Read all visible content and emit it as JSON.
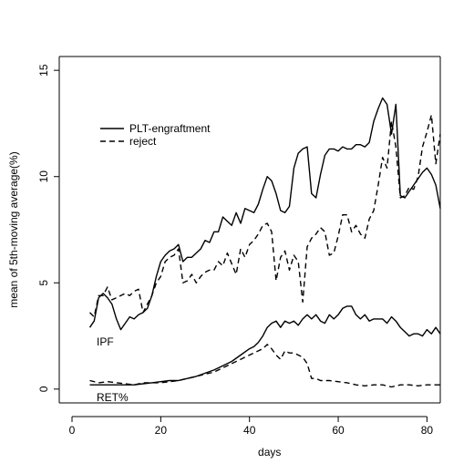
{
  "chart_data": {
    "type": "line",
    "title": "",
    "xlabel": "days",
    "ylabel": "mean of 5th-moving average(%)",
    "xlim": [
      0,
      83
    ],
    "ylim": [
      0,
      15
    ],
    "x_ticks": [
      "0",
      "20",
      "40",
      "60",
      "80"
    ],
    "y_ticks": [
      "0",
      "5",
      "10",
      "15"
    ],
    "grid": false,
    "legend": {
      "position": "top-left",
      "entries": [
        {
          "label": "PLT-engraftment",
          "style": "solid"
        },
        {
          "label": "reject",
          "style": "dashed"
        }
      ]
    },
    "annotations": [
      "IPF",
      "RET%"
    ],
    "series": [
      {
        "name": "PLT-engraftment",
        "group": "IPF",
        "style": "solid",
        "points": [
          [
            4,
            2.9
          ],
          [
            5,
            3.2
          ],
          [
            6,
            4.3
          ],
          [
            7,
            4.5
          ],
          [
            8,
            4.3
          ],
          [
            9,
            4.0
          ],
          [
            10,
            3.3
          ],
          [
            11,
            2.8
          ],
          [
            12,
            3.1
          ],
          [
            13,
            3.4
          ],
          [
            14,
            3.3
          ],
          [
            15,
            3.5
          ],
          [
            16,
            3.6
          ],
          [
            17,
            3.8
          ],
          [
            18,
            4.4
          ],
          [
            19,
            5.3
          ],
          [
            20,
            6.0
          ],
          [
            21,
            6.3
          ],
          [
            22,
            6.5
          ],
          [
            23,
            6.6
          ],
          [
            24,
            6.8
          ],
          [
            25,
            6.0
          ],
          [
            26,
            6.2
          ],
          [
            27,
            6.2
          ],
          [
            28,
            6.4
          ],
          [
            29,
            6.6
          ],
          [
            30,
            7.0
          ],
          [
            31,
            6.9
          ],
          [
            32,
            7.4
          ],
          [
            33,
            7.4
          ],
          [
            34,
            8.1
          ],
          [
            35,
            7.9
          ],
          [
            36,
            7.7
          ],
          [
            37,
            8.3
          ],
          [
            38,
            7.8
          ],
          [
            39,
            8.5
          ],
          [
            40,
            8.4
          ],
          [
            41,
            8.3
          ],
          [
            42,
            8.7
          ],
          [
            43,
            9.4
          ],
          [
            44,
            10.0
          ],
          [
            45,
            9.8
          ],
          [
            46,
            9.2
          ],
          [
            47,
            8.4
          ],
          [
            48,
            8.3
          ],
          [
            49,
            8.6
          ],
          [
            50,
            10.4
          ],
          [
            51,
            11.1
          ],
          [
            52,
            11.3
          ],
          [
            53,
            11.4
          ],
          [
            54,
            9.2
          ],
          [
            55,
            9.0
          ],
          [
            56,
            10.1
          ],
          [
            57,
            11.0
          ],
          [
            58,
            11.3
          ],
          [
            59,
            11.3
          ],
          [
            60,
            11.2
          ],
          [
            61,
            11.4
          ],
          [
            62,
            11.3
          ],
          [
            63,
            11.3
          ],
          [
            64,
            11.5
          ],
          [
            65,
            11.5
          ],
          [
            66,
            11.4
          ],
          [
            67,
            11.6
          ],
          [
            68,
            12.6
          ],
          [
            69,
            13.2
          ],
          [
            70,
            13.7
          ],
          [
            71,
            13.4
          ],
          [
            72,
            12.0
          ],
          [
            73,
            13.4
          ],
          [
            74,
            9.1
          ],
          [
            75,
            9.0
          ],
          [
            76,
            9.3
          ],
          [
            77,
            9.6
          ],
          [
            78,
            9.9
          ],
          [
            79,
            10.2
          ],
          [
            80,
            10.4
          ],
          [
            81,
            10.1
          ],
          [
            82,
            9.6
          ],
          [
            83,
            8.5
          ]
        ]
      },
      {
        "name": "reject",
        "group": "IPF",
        "style": "dashed",
        "points": [
          [
            4,
            3.6
          ],
          [
            5,
            3.4
          ],
          [
            6,
            4.4
          ],
          [
            7,
            4.4
          ],
          [
            8,
            4.8
          ],
          [
            9,
            4.2
          ],
          [
            10,
            4.3
          ],
          [
            11,
            4.4
          ],
          [
            12,
            4.5
          ],
          [
            13,
            4.4
          ],
          [
            14,
            4.6
          ],
          [
            15,
            4.7
          ],
          [
            16,
            3.6
          ],
          [
            17,
            4.0
          ],
          [
            18,
            4.4
          ],
          [
            19,
            5.0
          ],
          [
            20,
            5.3
          ],
          [
            21,
            6.0
          ],
          [
            22,
            6.2
          ],
          [
            23,
            6.3
          ],
          [
            24,
            6.6
          ],
          [
            25,
            5.0
          ],
          [
            26,
            5.1
          ],
          [
            27,
            5.4
          ],
          [
            28,
            5.0
          ],
          [
            29,
            5.3
          ],
          [
            30,
            5.5
          ],
          [
            31,
            5.6
          ],
          [
            32,
            5.6
          ],
          [
            33,
            6.0
          ],
          [
            34,
            5.8
          ],
          [
            35,
            6.4
          ],
          [
            36,
            5.9
          ],
          [
            37,
            5.4
          ],
          [
            38,
            6.6
          ],
          [
            39,
            6.2
          ],
          [
            40,
            6.8
          ],
          [
            41,
            7.0
          ],
          [
            42,
            7.3
          ],
          [
            43,
            7.7
          ],
          [
            44,
            7.8
          ],
          [
            45,
            7.4
          ],
          [
            46,
            5.1
          ],
          [
            47,
            6.2
          ],
          [
            48,
            6.5
          ],
          [
            49,
            5.6
          ],
          [
            50,
            6.3
          ],
          [
            51,
            6.0
          ],
          [
            52,
            4.1
          ],
          [
            53,
            6.7
          ],
          [
            54,
            7.1
          ],
          [
            55,
            7.3
          ],
          [
            56,
            7.6
          ],
          [
            57,
            7.4
          ],
          [
            58,
            6.3
          ],
          [
            59,
            6.4
          ],
          [
            60,
            7.2
          ],
          [
            61,
            8.2
          ],
          [
            62,
            8.2
          ],
          [
            63,
            7.4
          ],
          [
            64,
            7.7
          ],
          [
            65,
            7.3
          ],
          [
            66,
            7.1
          ],
          [
            67,
            8.0
          ],
          [
            68,
            8.4
          ],
          [
            69,
            9.6
          ],
          [
            70,
            10.9
          ],
          [
            71,
            10.4
          ],
          [
            72,
            12.6
          ],
          [
            73,
            11.4
          ],
          [
            74,
            9.0
          ],
          [
            75,
            9.1
          ],
          [
            76,
            9.5
          ],
          [
            77,
            9.4
          ],
          [
            78,
            10.0
          ],
          [
            79,
            11.4
          ],
          [
            80,
            12.1
          ],
          [
            81,
            12.9
          ],
          [
            82,
            10.6
          ],
          [
            83,
            12.0
          ]
        ]
      },
      {
        "name": "PLT-engraftment",
        "group": "RET%",
        "style": "solid",
        "points": [
          [
            4,
            0.2
          ],
          [
            6,
            0.2
          ],
          [
            8,
            0.2
          ],
          [
            10,
            0.2
          ],
          [
            12,
            0.2
          ],
          [
            14,
            0.2
          ],
          [
            16,
            0.25
          ],
          [
            18,
            0.3
          ],
          [
            20,
            0.35
          ],
          [
            22,
            0.4
          ],
          [
            24,
            0.4
          ],
          [
            26,
            0.5
          ],
          [
            28,
            0.6
          ],
          [
            30,
            0.75
          ],
          [
            32,
            0.9
          ],
          [
            34,
            1.1
          ],
          [
            36,
            1.3
          ],
          [
            38,
            1.6
          ],
          [
            40,
            1.9
          ],
          [
            41,
            2.0
          ],
          [
            42,
            2.2
          ],
          [
            43,
            2.5
          ],
          [
            44,
            2.9
          ],
          [
            45,
            3.1
          ],
          [
            46,
            3.2
          ],
          [
            47,
            2.9
          ],
          [
            48,
            3.2
          ],
          [
            49,
            3.1
          ],
          [
            50,
            3.2
          ],
          [
            51,
            3.0
          ],
          [
            52,
            3.3
          ],
          [
            53,
            3.5
          ],
          [
            54,
            3.3
          ],
          [
            55,
            3.5
          ],
          [
            56,
            3.2
          ],
          [
            57,
            3.1
          ],
          [
            58,
            3.5
          ],
          [
            59,
            3.3
          ],
          [
            60,
            3.5
          ],
          [
            61,
            3.8
          ],
          [
            62,
            3.9
          ],
          [
            63,
            3.9
          ],
          [
            64,
            3.5
          ],
          [
            65,
            3.3
          ],
          [
            66,
            3.5
          ],
          [
            67,
            3.2
          ],
          [
            68,
            3.3
          ],
          [
            69,
            3.3
          ],
          [
            70,
            3.3
          ],
          [
            71,
            3.1
          ],
          [
            72,
            3.4
          ],
          [
            73,
            3.2
          ],
          [
            74,
            2.9
          ],
          [
            75,
            2.7
          ],
          [
            76,
            2.5
          ],
          [
            77,
            2.6
          ],
          [
            78,
            2.6
          ],
          [
            79,
            2.5
          ],
          [
            80,
            2.8
          ],
          [
            81,
            2.6
          ],
          [
            82,
            2.9
          ],
          [
            83,
            2.6
          ]
        ]
      },
      {
        "name": "reject",
        "group": "RET%",
        "style": "dashed",
        "points": [
          [
            4,
            0.4
          ],
          [
            6,
            0.3
          ],
          [
            8,
            0.35
          ],
          [
            10,
            0.3
          ],
          [
            12,
            0.25
          ],
          [
            14,
            0.2
          ],
          [
            16,
            0.3
          ],
          [
            18,
            0.3
          ],
          [
            20,
            0.3
          ],
          [
            22,
            0.35
          ],
          [
            24,
            0.4
          ],
          [
            26,
            0.5
          ],
          [
            28,
            0.6
          ],
          [
            30,
            0.7
          ],
          [
            32,
            0.8
          ],
          [
            34,
            1.0
          ],
          [
            36,
            1.2
          ],
          [
            38,
            1.4
          ],
          [
            40,
            1.6
          ],
          [
            42,
            1.8
          ],
          [
            43,
            1.9
          ],
          [
            44,
            2.1
          ],
          [
            45,
            1.9
          ],
          [
            46,
            1.6
          ],
          [
            47,
            1.4
          ],
          [
            48,
            1.8
          ],
          [
            49,
            1.7
          ],
          [
            50,
            1.7
          ],
          [
            51,
            1.6
          ],
          [
            52,
            1.5
          ],
          [
            53,
            1.2
          ],
          [
            54,
            0.5
          ],
          [
            55,
            0.5
          ],
          [
            56,
            0.4
          ],
          [
            58,
            0.4
          ],
          [
            60,
            0.35
          ],
          [
            62,
            0.3
          ],
          [
            64,
            0.2
          ],
          [
            66,
            0.15
          ],
          [
            68,
            0.2
          ],
          [
            70,
            0.2
          ],
          [
            72,
            0.1
          ],
          [
            74,
            0.2
          ],
          [
            76,
            0.2
          ],
          [
            78,
            0.15
          ],
          [
            80,
            0.2
          ],
          [
            82,
            0.2
          ],
          [
            83,
            0.2
          ]
        ]
      }
    ]
  }
}
